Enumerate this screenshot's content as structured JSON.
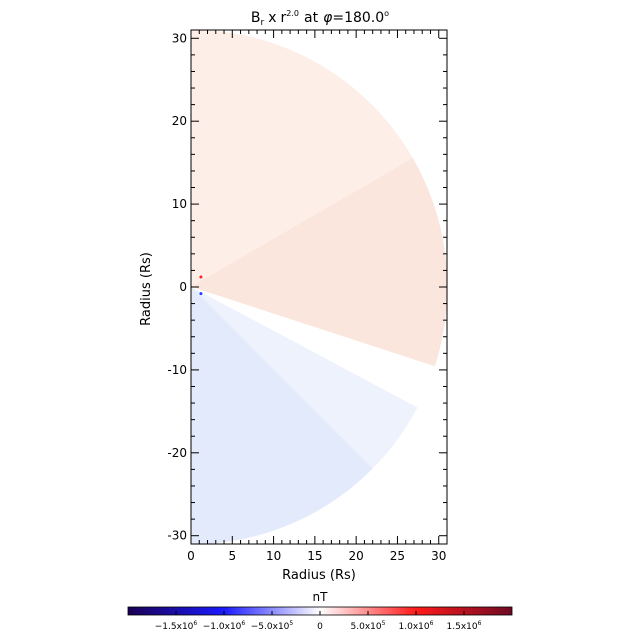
{
  "chart_data": {
    "type": "heatmap",
    "title": {
      "quantity": "B",
      "quantity_subscript": "r",
      "times": "x",
      "r_symbol": "r",
      "r_exponent": "2.0",
      "at": "at",
      "phi_symbol": "φ",
      "phi_value": "=180.0",
      "degree": "o"
    },
    "xlabel": "Radius (Rs)",
    "ylabel": "Radius (Rs)",
    "xlim": [
      0,
      31
    ],
    "ylim": [
      -31,
      31
    ],
    "x_ticks": [
      0,
      5,
      10,
      15,
      20,
      25,
      30
    ],
    "y_ticks": [
      -30,
      -20,
      -10,
      0,
      10,
      20,
      30
    ],
    "domain": {
      "r_max": 31,
      "polar_angle_range_deg": [
        0,
        180
      ],
      "description_regions": [
        {
          "from_polar_deg": 0,
          "to_polar_deg": 60,
          "color": "#fdeee8"
        },
        {
          "from_polar_deg": 60,
          "to_polar_deg": 108,
          "color": "#fbe6dd"
        },
        {
          "from_polar_deg": 108,
          "to_polar_deg": 118,
          "color": "#ffffff"
        },
        {
          "from_polar_deg": 118,
          "to_polar_deg": 135,
          "color": "#eef2fd"
        },
        {
          "from_polar_deg": 135,
          "to_polar_deg": 180,
          "color": "#e3eafc"
        }
      ]
    },
    "colorbar": {
      "label": "nT",
      "range": [
        -2000000,
        2000000
      ],
      "ticks": [
        {
          "value": -1500000,
          "mantissa": "−1.5x10",
          "exp": "6"
        },
        {
          "value": -1000000,
          "mantissa": "−1.0x10",
          "exp": "6"
        },
        {
          "value": -500000,
          "mantissa": "−5.0x10",
          "exp": "5"
        },
        {
          "value": 0,
          "mantissa": "0",
          "exp": ""
        },
        {
          "value": 500000,
          "mantissa": "5.0x10",
          "exp": "5"
        },
        {
          "value": 1000000,
          "mantissa": "1.0x10",
          "exp": "6"
        },
        {
          "value": 1500000,
          "mantissa": "1.5x10",
          "exp": "6"
        }
      ],
      "colors": [
        "#1a0052",
        "#1a1aff",
        "#ffffff",
        "#ff1a1a",
        "#6e0a24"
      ]
    }
  }
}
